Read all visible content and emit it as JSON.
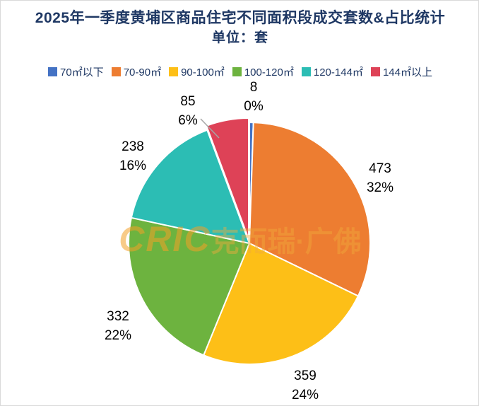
{
  "chart_data": {
    "type": "pie",
    "title": "2025年一季度黄埔区商品住宅不同面积段成交套数&占比统计",
    "subtitle": "单位：套",
    "legend_position": "top",
    "categories": [
      "70㎡以下",
      "70-90㎡",
      "90-100㎡",
      "100-120㎡",
      "120-144㎡",
      "144㎡以上"
    ],
    "values": [
      8,
      473,
      359,
      332,
      238,
      85
    ],
    "percent_labels": [
      "0%",
      "32%",
      "24%",
      "22%",
      "16%",
      "6%"
    ],
    "colors": [
      "#4472c4",
      "#ed7d31",
      "#fdbf17",
      "#6db33f",
      "#2cbdb4",
      "#de4257"
    ],
    "slice_border_color": "#ffffff",
    "leader_line_color": "#a6a6a6"
  },
  "watermark": {
    "brand": "CRIC",
    "rest": "克而瑞·广佛"
  }
}
